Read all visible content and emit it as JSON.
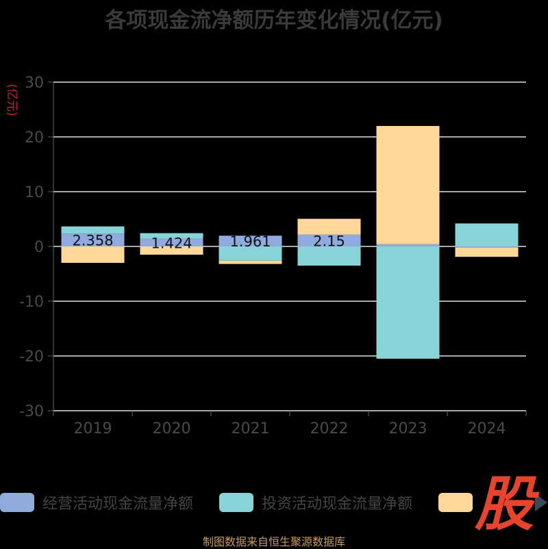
{
  "chart_data": {
    "type": "bar",
    "stacked": true,
    "title": "各项现金流净额历年变化情况(亿元)",
    "ylabel": "(亿元)",
    "ylim": [
      -30,
      30
    ],
    "yticks": [
      30,
      20,
      10,
      0,
      -10,
      -20,
      -30
    ],
    "grid": true,
    "legend_position": "bottom",
    "categories": [
      "2019",
      "2020",
      "2021",
      "2022",
      "2023",
      "2024"
    ],
    "series": [
      {
        "name": "经营活动现金流量净额",
        "color": "#8faadc",
        "values": [
          2.358,
          1.424,
          1.961,
          2.15,
          0.4,
          -0.2
        ]
      },
      {
        "name": "投资活动现金流量净额",
        "color": "#86d4d8",
        "values": [
          1.3,
          1.0,
          -2.6,
          -3.5,
          -20.5,
          4.2
        ]
      },
      {
        "name": "",
        "color": "#ffd898",
        "values": [
          -3.0,
          -1.5,
          -0.6,
          2.9,
          21.6,
          -1.7
        ]
      }
    ],
    "data_labels": [
      "2.358",
      "1.424",
      "1.961",
      "2.15",
      "",
      ""
    ]
  },
  "legend": {
    "items": [
      "经营活动现金流量净额",
      "投资活动现金流量净额",
      ""
    ]
  },
  "watermark": "股",
  "source_note": "制图数据来自恒生聚源数据库"
}
